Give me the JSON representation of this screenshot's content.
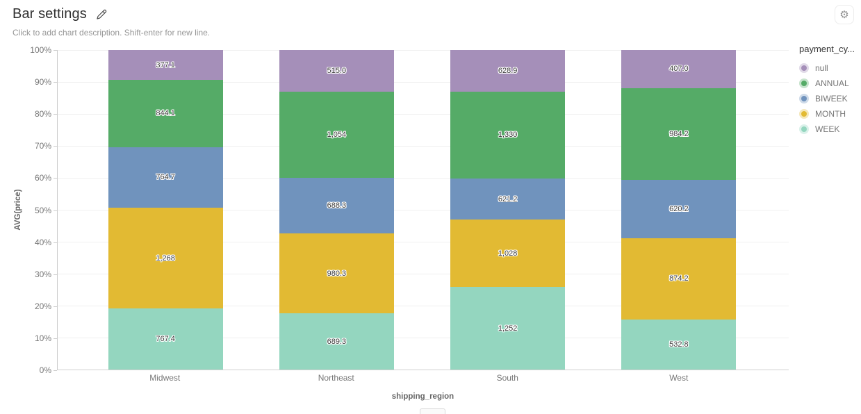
{
  "header": {
    "title": "Bar settings",
    "description_placeholder": "Click to add chart description. Shift-enter for new line.",
    "settings_icon": "⚙"
  },
  "legend": {
    "title": "payment_cy...",
    "items": [
      {
        "label": "null",
        "color": "#a58fb9"
      },
      {
        "label": "ANNUAL",
        "color": "#55ab67"
      },
      {
        "label": "BIWEEK",
        "color": "#7093bd"
      },
      {
        "label": "MONTH",
        "color": "#e2ba33"
      },
      {
        "label": "WEEK",
        "color": "#94d6bf"
      }
    ]
  },
  "chart_data": {
    "type": "bar",
    "stacked": true,
    "percent_normalized": true,
    "title": "Bar settings",
    "xlabel": "shipping_region",
    "ylabel": "AVG(price)",
    "categories": [
      "Midwest",
      "Northeast",
      "South",
      "West"
    ],
    "series": [
      {
        "name": "null",
        "color": "#a58fb9",
        "values": [
          377.1,
          515.0,
          628.9,
          407.0
        ],
        "labels": [
          "377.1",
          "515.0",
          "628.9",
          "407.0"
        ]
      },
      {
        "name": "ANNUAL",
        "color": "#55ab67",
        "values": [
          844.1,
          1054,
          1330,
          984.2
        ],
        "labels": [
          "844.1",
          "1,054",
          "1,330",
          "984.2"
        ]
      },
      {
        "name": "BIWEEK",
        "color": "#7093bd",
        "values": [
          764.7,
          688.3,
          621.2,
          620.2
        ],
        "labels": [
          "764.7",
          "688.3",
          "621.2",
          "620.2"
        ]
      },
      {
        "name": "MONTH",
        "color": "#e2ba33",
        "values": [
          1268,
          980.3,
          1028,
          874.2
        ],
        "labels": [
          "1,268",
          "980.3",
          "1,028",
          "874.2"
        ]
      },
      {
        "name": "WEEK",
        "color": "#94d6bf",
        "values": [
          767.4,
          689.3,
          1252,
          532.8
        ],
        "labels": [
          "767.4",
          "689.3",
          "1,252",
          "532.8"
        ]
      }
    ],
    "stack_order_top_to_bottom": [
      "null",
      "ANNUAL",
      "BIWEEK",
      "MONTH",
      "WEEK"
    ],
    "y_ticks": [
      "100%",
      "90%",
      "80%",
      "70%",
      "60%",
      "50%",
      "40%",
      "30%",
      "20%",
      "10%",
      "0%"
    ],
    "ylim": [
      0,
      100
    ],
    "grid": true,
    "legend_position": "right"
  }
}
